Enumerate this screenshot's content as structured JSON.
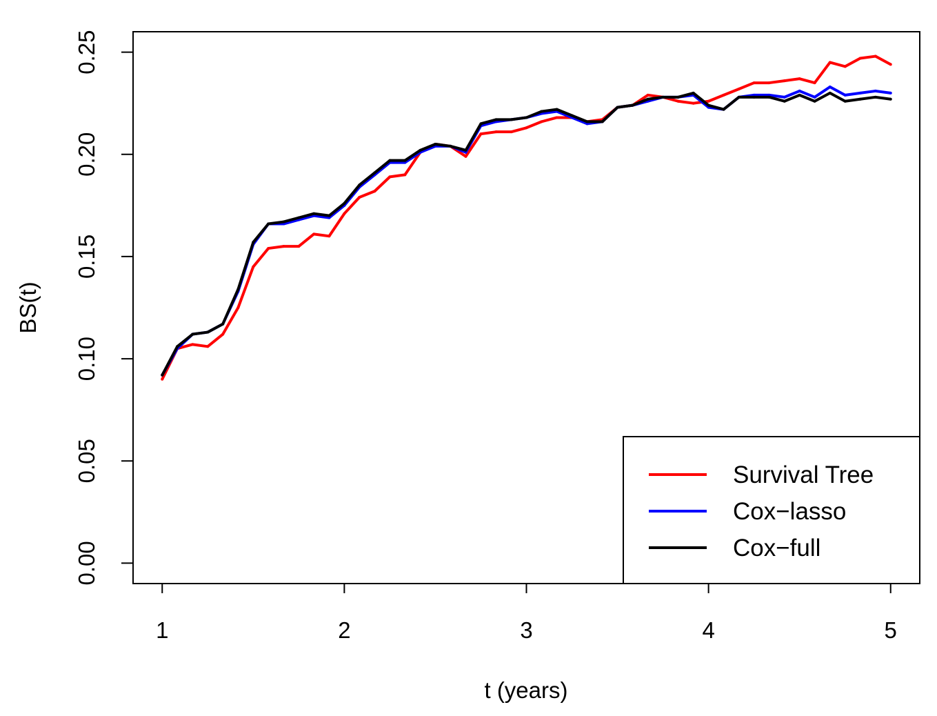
{
  "chart_data": {
    "type": "line",
    "title": "",
    "xlabel": "t (years)",
    "ylabel": "BS(t)",
    "xlim": [
      0.84,
      5.16
    ],
    "ylim": [
      -0.01,
      0.26
    ],
    "xticks": [
      1,
      2,
      3,
      4,
      5
    ],
    "xtick_labels": [
      "1",
      "2",
      "3",
      "4",
      "5"
    ],
    "yticks": [
      0.0,
      0.05,
      0.1,
      0.15,
      0.2,
      0.25
    ],
    "ytick_labels": [
      "0.00",
      "0.05",
      "0.10",
      "0.15",
      "0.20",
      "0.25"
    ],
    "grid": false,
    "legend_position": "bottom-right",
    "x": [
      1.0,
      1.083,
      1.167,
      1.25,
      1.333,
      1.417,
      1.5,
      1.583,
      1.667,
      1.75,
      1.833,
      1.917,
      2.0,
      2.083,
      2.167,
      2.25,
      2.333,
      2.417,
      2.5,
      2.583,
      2.667,
      2.75,
      2.833,
      2.917,
      3.0,
      3.083,
      3.167,
      3.25,
      3.333,
      3.417,
      3.5,
      3.583,
      3.667,
      3.75,
      3.833,
      3.917,
      4.0,
      4.083,
      4.167,
      4.25,
      4.333,
      4.417,
      4.5,
      4.583,
      4.667,
      4.75,
      4.833,
      4.917,
      5.0
    ],
    "series": [
      {
        "name": "Survival Tree",
        "color": "#ff0000",
        "values": [
          0.09,
          0.105,
          0.107,
          0.106,
          0.112,
          0.125,
          0.145,
          0.154,
          0.155,
          0.155,
          0.161,
          0.16,
          0.171,
          0.179,
          0.182,
          0.189,
          0.19,
          0.201,
          0.205,
          0.204,
          0.199,
          0.21,
          0.211,
          0.211,
          0.213,
          0.216,
          0.218,
          0.218,
          0.216,
          0.217,
          0.223,
          0.224,
          0.229,
          0.228,
          0.226,
          0.225,
          0.226,
          0.229,
          0.232,
          0.235,
          0.235,
          0.236,
          0.237,
          0.235,
          0.245,
          0.243,
          0.247,
          0.248,
          0.244
        ]
      },
      {
        "name": "Cox−lasso",
        "color": "#0000ff",
        "values": [
          0.092,
          0.105,
          0.112,
          0.113,
          0.117,
          0.133,
          0.156,
          0.166,
          0.166,
          0.168,
          0.17,
          0.169,
          0.175,
          0.184,
          0.19,
          0.196,
          0.196,
          0.201,
          0.204,
          0.204,
          0.201,
          0.214,
          0.216,
          0.217,
          0.218,
          0.22,
          0.221,
          0.218,
          0.215,
          0.216,
          0.223,
          0.224,
          0.226,
          0.228,
          0.228,
          0.229,
          0.223,
          0.222,
          0.228,
          0.229,
          0.229,
          0.228,
          0.231,
          0.228,
          0.233,
          0.229,
          0.23,
          0.231,
          0.23
        ]
      },
      {
        "name": "Cox−full",
        "color": "#000000",
        "values": [
          0.092,
          0.106,
          0.112,
          0.113,
          0.117,
          0.134,
          0.157,
          0.166,
          0.167,
          0.169,
          0.171,
          0.17,
          0.176,
          0.185,
          0.191,
          0.197,
          0.197,
          0.202,
          0.205,
          0.204,
          0.202,
          0.215,
          0.217,
          0.217,
          0.218,
          0.221,
          0.222,
          0.219,
          0.216,
          0.216,
          0.223,
          0.224,
          0.227,
          0.228,
          0.228,
          0.23,
          0.224,
          0.222,
          0.228,
          0.228,
          0.228,
          0.226,
          0.229,
          0.226,
          0.23,
          0.226,
          0.227,
          0.228,
          0.227
        ]
      }
    ]
  }
}
